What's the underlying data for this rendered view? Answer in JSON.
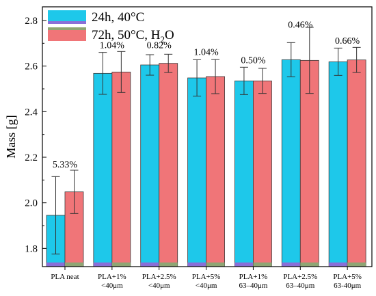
{
  "colors": {
    "series1": "#1ec8ea",
    "series2": "#f07578",
    "series1_stripe": "#8a6fd8",
    "series2_stripe": "#8fa674",
    "axis": "#000000",
    "errorbar": "#333333"
  },
  "chart_data": {
    "type": "bar",
    "ylabel": "Mass [g]",
    "ylim": [
      1.72,
      2.86
    ],
    "yticks": [
      1.8,
      2.0,
      2.2,
      2.4,
      2.6,
      2.8
    ],
    "ytick_labels": [
      "1.8",
      "2.0",
      "2.2",
      "2.4",
      "2.6",
      "2.8"
    ],
    "grid": false,
    "legend_position": "top-left",
    "categories": [
      {
        "line1": "PLA neat",
        "line2": ""
      },
      {
        "line1": "PLA+1%",
        "line2": "<40μm"
      },
      {
        "line1": "PLA+2.5%",
        "line2": "<40μm"
      },
      {
        "line1": "PLA+5%",
        "line2": "<40μm"
      },
      {
        "line1": "PLA+1%",
        "line2": "63–40μm"
      },
      {
        "line1": "PLA+2.5%",
        "line2": "63–40μm"
      },
      {
        "line1": "PLA+5%",
        "line2": "63-40μm"
      }
    ],
    "series": [
      {
        "legend_main": "24h, 40°C",
        "legend_sub": "",
        "legend_tail": "",
        "values": [
          1.945,
          2.568,
          2.605,
          2.548,
          2.535,
          2.628,
          2.619
        ],
        "errors": [
          0.17,
          0.092,
          0.045,
          0.08,
          0.06,
          0.075,
          0.06
        ]
      },
      {
        "legend_main": "72h, 50°C, H",
        "legend_sub": "2",
        "legend_tail": "O",
        "values": [
          2.048,
          2.574,
          2.612,
          2.554,
          2.535,
          2.625,
          2.627
        ],
        "errors": [
          0.095,
          0.09,
          0.04,
          0.075,
          0.055,
          0.145,
          0.055
        ]
      }
    ],
    "annotations": [
      "5.33%",
      "1.04%",
      "0.82%",
      "1.04%",
      "0.50%",
      "0.46%",
      "0.66%"
    ],
    "annotation_y": [
      2.155,
      2.678,
      2.678,
      2.648,
      2.612,
      2.768,
      2.698
    ]
  }
}
